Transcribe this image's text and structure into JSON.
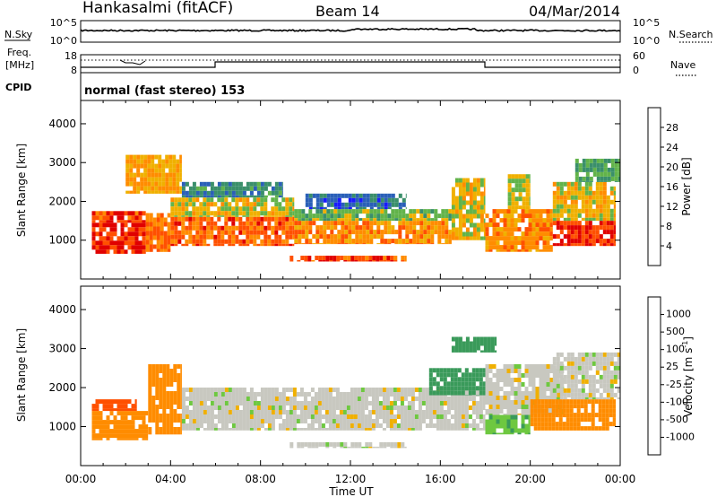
{
  "header": {
    "station": "Hankasalmi (fitACF)",
    "beam": "Beam 14",
    "date": "04/Mar/2014"
  },
  "noise_panel": {
    "left_label": "N.Sky",
    "right_label": "N.Search",
    "left_ticks": [
      "10^5",
      "10^0"
    ],
    "right_ticks": [
      "10^5",
      "10^0"
    ]
  },
  "freq_panel": {
    "left_label_1": "Freq.",
    "left_label_2": "[MHz]",
    "right_label": "Nave",
    "left_ticks": [
      "18",
      "8"
    ],
    "right_ticks": [
      "60",
      "0"
    ]
  },
  "cpid_panel": {
    "label": "CPID",
    "text": "normal (fast stereo) 153"
  },
  "x_ticks": [
    "00:00",
    "04:00",
    "08:00",
    "12:00",
    "16:00",
    "20:00",
    "00:00"
  ],
  "x_label": "Time UT",
  "colors": {
    "power": [
      "#1a1aff",
      "#2a5fb8",
      "#3a8f6a",
      "#62b34a",
      "#f0b000",
      "#ff8c00",
      "#ff5000",
      "#e00000"
    ],
    "velocity": [
      "#e00000",
      "#ff5000",
      "#ff8c00",
      "#f0b000",
      "#c8c8c0",
      "#6ec840",
      "#3a9a5a",
      "#2a62c8",
      "#1a3a9a"
    ],
    "ground_scatter": "#c8c8c0"
  },
  "chart_data": [
    {
      "type": "heatmap",
      "name": "power",
      "x_range_hours": [
        0,
        24
      ],
      "ylabel": "Slant Range [km]",
      "ylim": [
        0,
        4600
      ],
      "y_ticks": [
        "1000",
        "2000",
        "3000",
        "4000"
      ],
      "colorbar": {
        "label": "Power [dB]",
        "range": [
          0,
          32
        ],
        "tick_labels": [
          "4",
          "8",
          "12",
          "16",
          "20",
          "24",
          "28"
        ],
        "tick_values": [
          4,
          8,
          12,
          16,
          20,
          24,
          28
        ]
      },
      "regions": [
        {
          "t0": 0.5,
          "t1": 2.9,
          "r0": 650,
          "r1": 1450,
          "power": 28
        },
        {
          "t0": 0.5,
          "t1": 2.9,
          "r0": 1450,
          "r1": 1750,
          "power": 27
        },
        {
          "t0": 2.9,
          "t1": 4.0,
          "r0": 700,
          "r1": 1700,
          "power": 24
        },
        {
          "t0": 4.0,
          "t1": 9.5,
          "r0": 850,
          "r1": 1600,
          "power": 25
        },
        {
          "t0": 4.0,
          "t1": 9.5,
          "r0": 1600,
          "r1": 2100,
          "power": 17
        },
        {
          "t0": 4.5,
          "t1": 9.0,
          "r0": 2100,
          "r1": 2500,
          "power": 9
        },
        {
          "t0": 9.5,
          "t1": 16.5,
          "r0": 900,
          "r1": 1500,
          "power": 22
        },
        {
          "t0": 9.5,
          "t1": 16.5,
          "r0": 1500,
          "r1": 1800,
          "power": 14
        },
        {
          "t0": 10.0,
          "t1": 14.5,
          "r0": 1800,
          "r1": 2200,
          "power": 7
        },
        {
          "t0": 16.5,
          "t1": 18.0,
          "r0": 1000,
          "r1": 2600,
          "power": 18
        },
        {
          "t0": 9.3,
          "t1": 14.5,
          "r0": 450,
          "r1": 600,
          "power": 27
        },
        {
          "t0": 18.0,
          "t1": 21.0,
          "r0": 700,
          "r1": 1800,
          "power": 22
        },
        {
          "t0": 19.0,
          "t1": 20.0,
          "r0": 1800,
          "r1": 2700,
          "power": 16
        },
        {
          "t0": 21.0,
          "t1": 23.8,
          "r0": 850,
          "r1": 1500,
          "power": 28
        },
        {
          "t0": 21.0,
          "t1": 23.8,
          "r0": 1500,
          "r1": 2500,
          "power": 18
        },
        {
          "t0": 22.0,
          "t1": 24.0,
          "r0": 2500,
          "r1": 3100,
          "power": 12
        },
        {
          "t0": 2.0,
          "t1": 4.5,
          "r0": 2200,
          "r1": 3200,
          "power": 20
        }
      ]
    },
    {
      "type": "heatmap",
      "name": "velocity",
      "x_range_hours": [
        0,
        24
      ],
      "ylabel": "Slant Range [km]",
      "ylim": [
        0,
        4600
      ],
      "y_ticks": [
        "1000",
        "2000",
        "3000",
        "4000"
      ],
      "colorbar": {
        "label": "Velocity [m s^-1]",
        "tick_labels": [
          "1000",
          "500",
          "100",
          "25",
          "-25",
          "-100",
          "-500",
          "-1000"
        ]
      },
      "regions": [
        {
          "t0": 0.5,
          "t1": 3.0,
          "r0": 650,
          "r1": 1400,
          "velocity": -200
        },
        {
          "t0": 0.5,
          "t1": 2.5,
          "r0": 1400,
          "r1": 1700,
          "velocity": -600
        },
        {
          "t0": 3.0,
          "t1": 4.5,
          "r0": 800,
          "r1": 2600,
          "velocity": -150
        },
        {
          "t0": 4.5,
          "t1": 18.0,
          "r0": 900,
          "r1": 2000,
          "velocity": 0
        },
        {
          "t0": 9.3,
          "t1": 14.5,
          "r0": 450,
          "r1": 600,
          "velocity": 0
        },
        {
          "t0": 15.5,
          "t1": 18.0,
          "r0": 1800,
          "r1": 2500,
          "velocity": 300
        },
        {
          "t0": 18.0,
          "t1": 21.5,
          "r0": 1300,
          "r1": 2600,
          "velocity": 0
        },
        {
          "t0": 18.0,
          "t1": 20.0,
          "r0": 800,
          "r1": 1300,
          "velocity": 80
        },
        {
          "t0": 20.0,
          "t1": 23.8,
          "r0": 900,
          "r1": 1700,
          "velocity": -350
        },
        {
          "t0": 21.0,
          "t1": 24.0,
          "r0": 1700,
          "r1": 2900,
          "velocity": 0
        },
        {
          "t0": 16.5,
          "t1": 18.5,
          "r0": 2900,
          "r1": 3300,
          "velocity": 150
        }
      ]
    }
  ]
}
